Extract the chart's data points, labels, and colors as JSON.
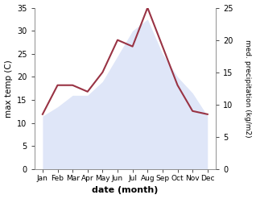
{
  "months": [
    "Jan",
    "Feb",
    "Mar",
    "Apr",
    "May",
    "Jun",
    "Jul",
    "Aug",
    "Sep",
    "Oct",
    "Nov",
    "Dec"
  ],
  "max_temp": [
    11.5,
    13.5,
    16.0,
    16.0,
    19.0,
    24.5,
    30.0,
    32.5,
    25.0,
    20.0,
    16.5,
    11.5
  ],
  "precipitation": [
    8.5,
    13.0,
    13.0,
    12.0,
    15.0,
    20.0,
    19.0,
    25.0,
    19.0,
    13.0,
    9.0,
    8.5
  ],
  "temp_fill_color": "#b8c8f0",
  "precip_color": "#993344",
  "xlabel": "date (month)",
  "ylabel_left": "max temp (C)",
  "ylabel_right": "med. precipitation (kg/m2)",
  "ylim_left": [
    0,
    35
  ],
  "ylim_right": [
    0,
    25
  ],
  "yticks_left": [
    0,
    5,
    10,
    15,
    20,
    25,
    30,
    35
  ],
  "yticks_right": [
    0,
    5,
    10,
    15,
    20,
    25
  ],
  "bg_color": "#ffffff",
  "fill_alpha": 0.45
}
